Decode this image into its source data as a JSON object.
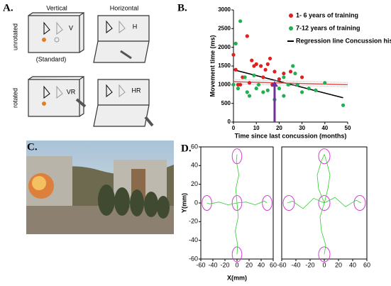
{
  "panel_a": {
    "label": "A.",
    "columns": [
      "Vertical",
      "Horizontal"
    ],
    "rows": [
      "unrotated",
      "rotated"
    ],
    "standard": "(Standard)",
    "cells": [
      "V",
      "H",
      "VR",
      "HR"
    ]
  },
  "panel_c": {
    "label": "C."
  },
  "chart_data": [
    {
      "type": "scatter",
      "label": "B.",
      "xlabel": "Time since last concussion  (months)",
      "ylabel": "Movement time (ms)",
      "xlim": [
        0,
        50
      ],
      "xticks": [
        0,
        10,
        20,
        30,
        40,
        50
      ],
      "ylim": [
        0,
        3000
      ],
      "yticks": [
        0,
        500,
        1000,
        1500,
        2000,
        2500,
        3000
      ],
      "legend": "upper right",
      "series": [
        {
          "name": "1- 6 years of training",
          "color": "#e02020",
          "x": [
            0,
            1,
            2,
            3,
            4,
            6,
            7,
            8,
            9,
            10,
            12,
            13,
            14,
            15,
            16,
            17,
            18,
            20,
            22,
            25,
            28,
            30
          ],
          "values": [
            1800,
            1400,
            1000,
            1000,
            1200,
            2300,
            1050,
            1650,
            1500,
            1550,
            1500,
            1200,
            1400,
            1550,
            1700,
            1000,
            1350,
            1150,
            1300,
            1350,
            1000,
            1200
          ]
        },
        {
          "name": "7-12 years of training",
          "color": "#20b050",
          "x": [
            0,
            1,
            2,
            3,
            5,
            6,
            7,
            9,
            10,
            11,
            13,
            15,
            18,
            20,
            22,
            22,
            24,
            26,
            27,
            28,
            30,
            33,
            36,
            40,
            48
          ],
          "values": [
            1000,
            2100,
            900,
            2700,
            1200,
            800,
            700,
            1250,
            900,
            1000,
            800,
            850,
            600,
            900,
            1200,
            700,
            1000,
            1500,
            1300,
            1000,
            800,
            900,
            850,
            1050,
            450
          ]
        }
      ],
      "lines": [
        {
          "name": "Regression line Concussion history",
          "color": "#000000",
          "x": [
            0,
            48
          ],
          "values": [
            1400,
            650
          ]
        },
        {
          "color": "#e05050",
          "x": [
            0,
            50
          ],
          "values": [
            1080,
            1000
          ]
        }
      ],
      "arrow": {
        "x": 18,
        "y": 1100,
        "color": "#7030a0"
      }
    },
    {
      "type": "trajectory",
      "label": "D.",
      "xlabel": "X(mm)",
      "ylabel": "Y(mm)",
      "xlim": [
        -60,
        60
      ],
      "xticks": [
        -60,
        -40,
        -20,
        0,
        20,
        40,
        60
      ],
      "ylim": [
        -60,
        60
      ],
      "yticks": [
        -60,
        -40,
        -20,
        0,
        20,
        40,
        60
      ],
      "targets": {
        "x": [
          0,
          0,
          50,
          -50,
          0
        ],
        "y": [
          50,
          -55,
          0,
          0,
          0
        ],
        "radius": 8,
        "color": "#d040d0"
      },
      "series": [
        {
          "color": "#33cc33",
          "x": [
            0,
            -2,
            3,
            -1,
            0
          ],
          "values": [
            0,
            15,
            30,
            45,
            52
          ]
        },
        {
          "color": "#33cc33",
          "x": [
            0,
            2,
            -3,
            1,
            0
          ],
          "values": [
            0,
            -15,
            -30,
            -45,
            -55
          ]
        },
        {
          "color": "#33cc33",
          "x": [
            0,
            15,
            30,
            45,
            50
          ],
          "values": [
            0,
            1,
            -2,
            2,
            0
          ]
        },
        {
          "color": "#33cc33",
          "x": [
            0,
            -15,
            -30,
            -45,
            -50
          ],
          "values": [
            0,
            -2,
            1,
            -1,
            0
          ]
        }
      ]
    },
    {
      "type": "trajectory",
      "xlim": [
        -60,
        60
      ],
      "xticks": [
        -60,
        -40,
        -20,
        0,
        20,
        40,
        60
      ],
      "ylim": [
        -60,
        60
      ],
      "targets": {
        "x": [
          0,
          0,
          50,
          -50,
          0
        ],
        "y": [
          50,
          -55,
          0,
          0,
          0
        ],
        "radius": 8,
        "color": "#d040d0"
      },
      "series": [
        {
          "color": "#33cc33",
          "x": [
            0,
            5,
            8,
            3,
            0
          ],
          "values": [
            0,
            15,
            30,
            45,
            52
          ]
        },
        {
          "color": "#33cc33",
          "x": [
            0,
            -8,
            -10,
            -4,
            0
          ],
          "values": [
            0,
            15,
            30,
            45,
            52
          ]
        },
        {
          "color": "#33cc33",
          "x": [
            0,
            -6,
            -4,
            2,
            0
          ],
          "values": [
            0,
            -15,
            -30,
            -45,
            -55
          ]
        },
        {
          "color": "#33cc33",
          "x": [
            0,
            15,
            30,
            45,
            52
          ],
          "values": [
            0,
            6,
            -4,
            3,
            0
          ]
        },
        {
          "color": "#33cc33",
          "x": [
            0,
            -15,
            -30,
            -45,
            -52
          ],
          "values": [
            0,
            5,
            -6,
            2,
            0
          ]
        }
      ]
    }
  ]
}
